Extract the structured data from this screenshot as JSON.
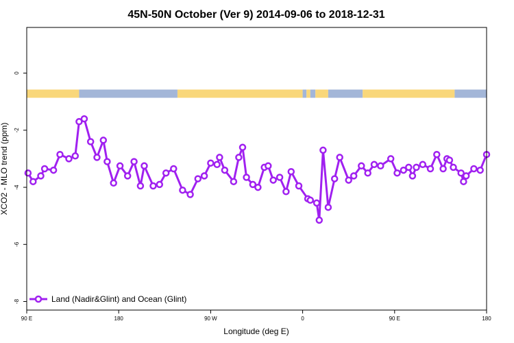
{
  "chart_data": {
    "type": "line",
    "title": "45N-50N October (Ver 9)   2014-09-06 to 2018-12-31",
    "xlabel": "Longitude (deg E)",
    "ylabel": "XCO2 - MLO trend (ppm)",
    "xlim": [
      90,
      450
    ],
    "ylim": [
      -8.3,
      1.6
    ],
    "x_tick_values": [
      90,
      162,
      234,
      306,
      378,
      450
    ],
    "x_tick_labels": [
      "90 E",
      "180",
      "90 W",
      "0",
      "90 E",
      "180"
    ],
    "y_ticks": [
      0,
      -2,
      -4,
      -6,
      -8
    ],
    "grid": false,
    "legend_position": "bottom-left",
    "colors": {
      "series": "#a020f0",
      "land": "#f9d77a",
      "ocean": "#a3b6d8"
    },
    "landmask_band": {
      "y": -0.72,
      "segments": [
        {
          "surface": "land",
          "x": [
            90,
            131
          ]
        },
        {
          "surface": "ocean",
          "x": [
            131,
            208
          ]
        },
        {
          "surface": "land",
          "x": [
            208,
            306
          ]
        },
        {
          "surface": "ocean",
          "x": [
            306,
            309
          ]
        },
        {
          "surface": "land",
          "x": [
            309,
            312
          ]
        },
        {
          "surface": "ocean",
          "x": [
            312,
            316
          ]
        },
        {
          "surface": "land",
          "x": [
            316,
            326
          ]
        },
        {
          "surface": "ocean",
          "x": [
            326,
            353
          ]
        },
        {
          "surface": "land",
          "x": [
            353,
            425
          ]
        },
        {
          "surface": "ocean",
          "x": [
            425,
            450
          ]
        }
      ]
    },
    "series": [
      {
        "name": "Land (Nadir&Glint) and Ocean (Glint)",
        "x": [
          91,
          95,
          101,
          104,
          111,
          116,
          123,
          128,
          131,
          135,
          140,
          145,
          150,
          153,
          158,
          163,
          169,
          174,
          179,
          182,
          189,
          194,
          199,
          205,
          212,
          218,
          224,
          229,
          234,
          239,
          241,
          245,
          252,
          256,
          259,
          262,
          267,
          271,
          276,
          279,
          283,
          288,
          293,
          297,
          303,
          310,
          312,
          317,
          319,
          322,
          326,
          331,
          335,
          342,
          346,
          352,
          357,
          362,
          367,
          375,
          380,
          385,
          389,
          392,
          395,
          400,
          406,
          411,
          416,
          419,
          421,
          424,
          430,
          432,
          434,
          440,
          445,
          451
        ],
        "y": [
          -3.5,
          -3.8,
          -3.6,
          -3.35,
          -3.4,
          -2.85,
          -3.0,
          -2.9,
          -1.7,
          -1.6,
          -2.4,
          -2.95,
          -2.35,
          -3.1,
          -3.85,
          -3.25,
          -3.6,
          -3.1,
          -3.95,
          -3.25,
          -3.95,
          -3.9,
          -3.5,
          -3.35,
          -4.1,
          -4.25,
          -3.7,
          -3.6,
          -3.15,
          -3.2,
          -2.95,
          -3.4,
          -3.8,
          -2.95,
          -2.6,
          -3.65,
          -3.9,
          -4.0,
          -3.3,
          -3.25,
          -3.75,
          -3.65,
          -4.15,
          -3.45,
          -3.95,
          -4.4,
          -4.45,
          -4.55,
          -5.15,
          -2.7,
          -4.7,
          -3.7,
          -2.95,
          -3.75,
          -3.6,
          -3.25,
          -3.5,
          -3.2,
          -3.25,
          -3.0,
          -3.5,
          -3.4,
          -3.3,
          -3.6,
          -3.3,
          -3.2,
          -3.35,
          -2.85,
          -3.35,
          -3.0,
          -3.05,
          -3.3,
          -3.5,
          -3.8,
          -3.6,
          -3.35,
          -3.4,
          -2.85
        ]
      }
    ]
  }
}
